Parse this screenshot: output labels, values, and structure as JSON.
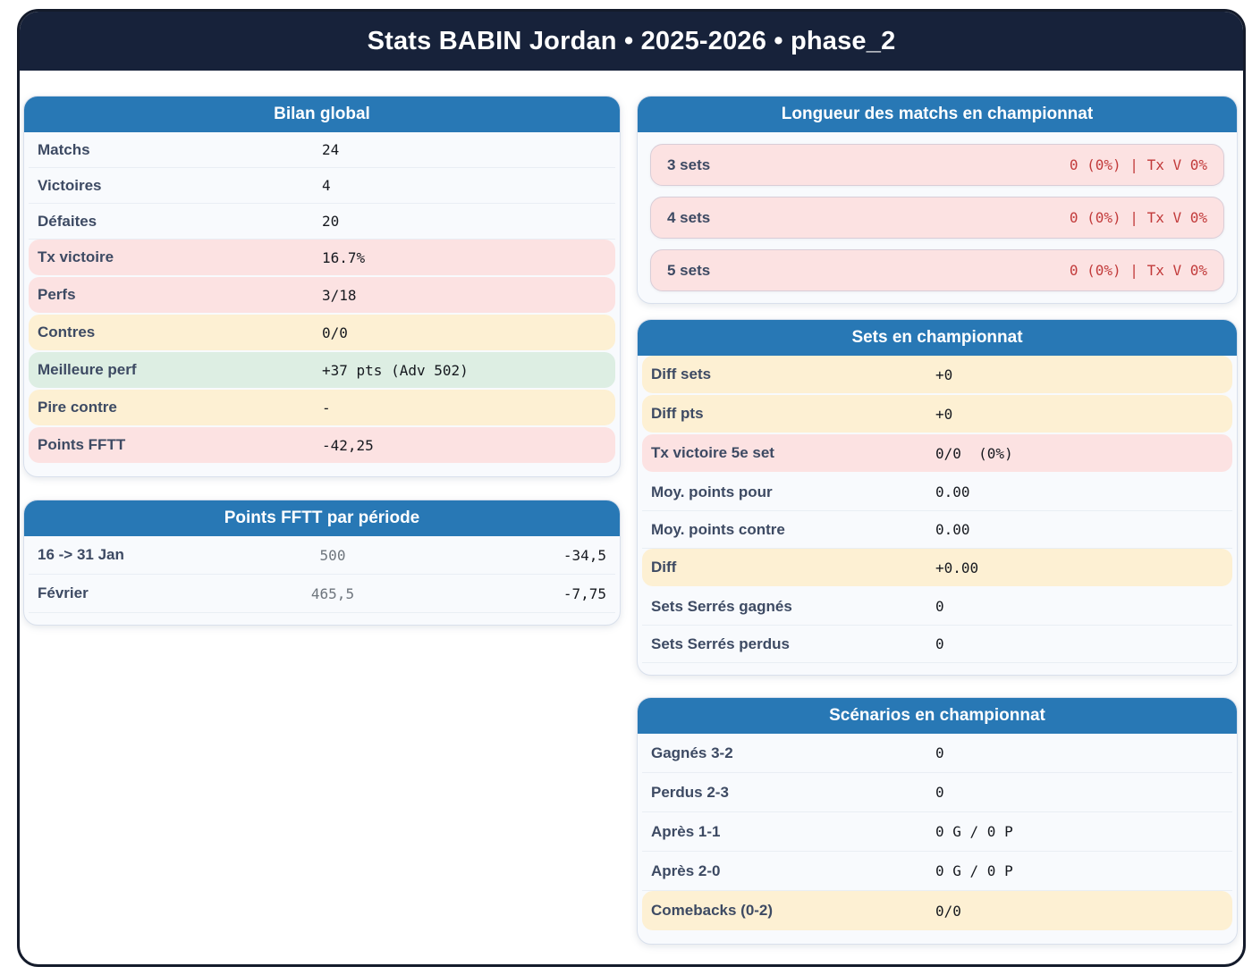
{
  "header": {
    "title": "Stats BABIN Jordan • 2025-2026 • phase_2"
  },
  "colors": {
    "navy_header": "#17223a",
    "card_header_blue": "#2878b5",
    "row_pink": "#fce2e2",
    "row_yellow": "#fdf0d3",
    "row_green": "#ddeee3",
    "red_value_text": "#c23b3b",
    "label_text": "#3d4a63"
  },
  "cards": {
    "bilan": {
      "title": "Bilan global",
      "rows": [
        {
          "label": "Matchs",
          "value": "24"
        },
        {
          "label": "Victoires",
          "value": "4"
        },
        {
          "label": "Défaites",
          "value": "20"
        },
        {
          "label": "Tx victoire",
          "value": "16.7%"
        },
        {
          "label": "Perfs",
          "value": "3/18"
        },
        {
          "label": "Contres",
          "value": "0/0"
        },
        {
          "label": "Meilleure perf",
          "value": "+37 pts (Adv 502)"
        },
        {
          "label": "Pire contre",
          "value": "-"
        },
        {
          "label": "Points FFTT",
          "value": "-42,25"
        }
      ]
    },
    "periodes": {
      "title": "Points FFTT par période",
      "rows": [
        {
          "label": "16 -> 31 Jan",
          "points": "500",
          "delta": "-34,5"
        },
        {
          "label": "Février",
          "points": "465,5",
          "delta": "-7,75"
        }
      ]
    },
    "longueur": {
      "title": "Longueur des matchs en championnat",
      "rows": [
        {
          "label": "3 sets",
          "value": "0 (0%) | Tx V 0%"
        },
        {
          "label": "4 sets",
          "value": "0 (0%) | Tx V 0%"
        },
        {
          "label": "5 sets",
          "value": "0 (0%) | Tx V 0%"
        }
      ]
    },
    "sets": {
      "title": "Sets en championnat",
      "rows": [
        {
          "label": "Diff sets",
          "value": "+0"
        },
        {
          "label": "Diff pts",
          "value": "+0"
        },
        {
          "label": "Tx victoire 5e set",
          "value": "0/0  (0%)"
        },
        {
          "label": "Moy. points pour",
          "value": "0.00"
        },
        {
          "label": "Moy. points contre",
          "value": "0.00"
        },
        {
          "label": "Diff",
          "value": "+0.00"
        },
        {
          "label": "Sets Serrés gagnés",
          "value": "0"
        },
        {
          "label": "Sets Serrés perdus",
          "value": "0"
        }
      ]
    },
    "scenarios": {
      "title": "Scénarios en championnat",
      "rows": [
        {
          "label": "Gagnés 3-2",
          "value": "0"
        },
        {
          "label": "Perdus 2-3",
          "value": "0"
        },
        {
          "label": "Après 1-1",
          "value": "0 G / 0 P"
        },
        {
          "label": "Après 2-0",
          "value": "0 G / 0 P"
        },
        {
          "label": "Comebacks (0-2)",
          "value": "0/0"
        }
      ]
    }
  }
}
